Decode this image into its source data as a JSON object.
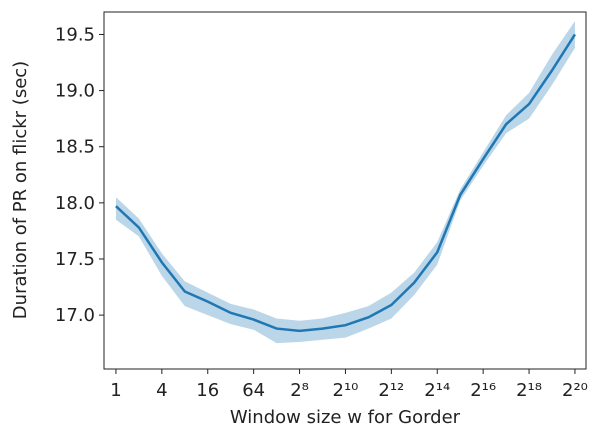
{
  "chart_data": {
    "type": "line",
    "x_label": "Window size w for Gorder",
    "y_label": "Duration of PR on flickr (sec)",
    "x": [
      1,
      2,
      4,
      8,
      16,
      32,
      64,
      128,
      256,
      512,
      1024,
      2048,
      4096,
      8192,
      16384,
      32768,
      65536,
      131072,
      262144,
      524288,
      1048576
    ],
    "series": [
      {
        "color": "#1f77b4",
        "band_color": "#1f77b4",
        "values": [
          17.97,
          17.78,
          17.47,
          17.21,
          17.12,
          17.02,
          16.96,
          16.88,
          16.86,
          16.88,
          16.91,
          16.98,
          17.09,
          17.29,
          17.56,
          18.07,
          18.39,
          18.7,
          18.88,
          19.18,
          19.5
        ],
        "lower": [
          17.85,
          17.7,
          17.35,
          17.08,
          17.0,
          16.92,
          16.87,
          16.75,
          16.76,
          16.78,
          16.8,
          16.88,
          16.97,
          17.18,
          17.45,
          18.02,
          18.33,
          18.62,
          18.75,
          19.05,
          19.38
        ],
        "upper": [
          18.05,
          17.86,
          17.55,
          17.3,
          17.2,
          17.1,
          17.05,
          16.97,
          16.95,
          16.97,
          17.02,
          17.08,
          17.2,
          17.38,
          17.65,
          18.12,
          18.45,
          18.78,
          18.98,
          19.32,
          19.62
        ]
      }
    ],
    "x_log_base": 2,
    "xlim": [
      0.697,
      1464000
    ],
    "ylim": [
      16.52,
      19.7
    ],
    "xticks": [
      1,
      4,
      16,
      64,
      {
        "value": 256,
        "label": "2⁸"
      },
      {
        "value": 1024,
        "label": "2¹⁰"
      },
      {
        "value": 4096,
        "label": "2¹²"
      },
      {
        "value": 16384,
        "label": "2¹⁴"
      },
      {
        "value": 65536,
        "label": "2¹⁶"
      },
      {
        "value": 262144,
        "label": "2¹⁸"
      },
      {
        "value": 1048576,
        "label": "2²⁰"
      }
    ],
    "yticks": [
      {
        "value": 17,
        "label": "17.0"
      },
      17.5,
      {
        "value": 18,
        "label": "18.0"
      },
      18.5,
      {
        "value": 19,
        "label": "19.0"
      },
      19.5
    ]
  }
}
